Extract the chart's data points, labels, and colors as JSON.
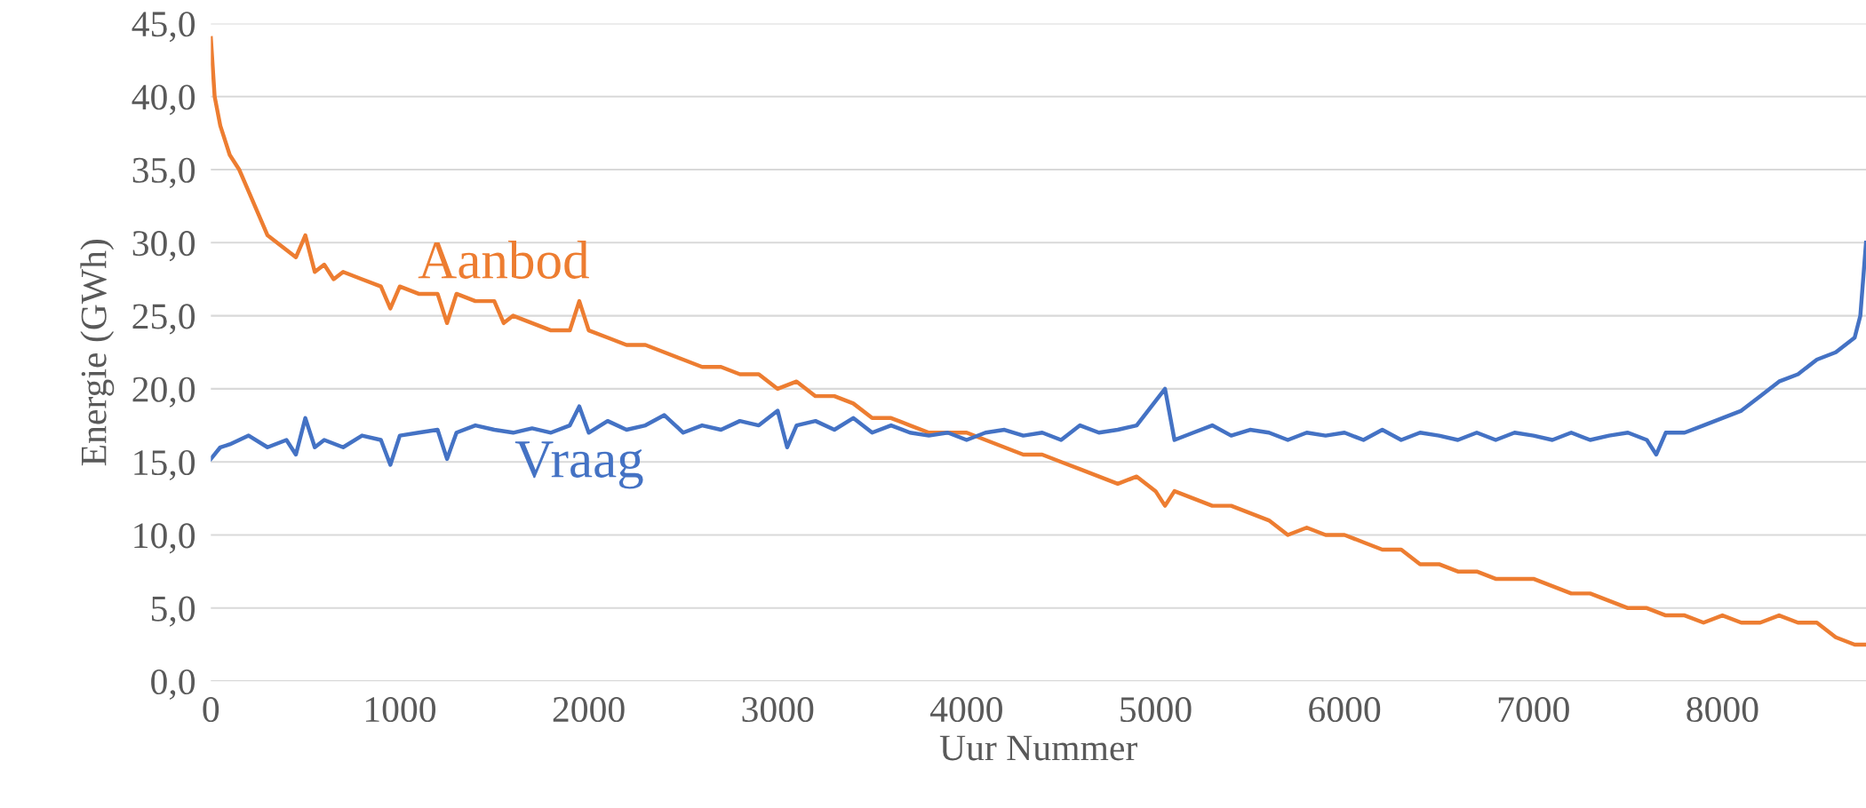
{
  "chart_data": {
    "type": "line",
    "xlabel": "Uur Nummer",
    "ylabel": "Energie (GWh)",
    "xlim": [
      0,
      8760
    ],
    "xticks": [
      0,
      1000,
      2000,
      3000,
      4000,
      5000,
      6000,
      7000,
      8000
    ],
    "ylim": [
      0,
      45
    ],
    "yticks": [
      {
        "value": 0,
        "label": "0,0"
      },
      {
        "value": 5,
        "label": "5,0"
      },
      {
        "value": 10,
        "label": "10,0"
      },
      {
        "value": 15,
        "label": "15,0"
      },
      {
        "value": 20,
        "label": "20,0"
      },
      {
        "value": 25,
        "label": "25,0"
      },
      {
        "value": 30,
        "label": "30,0"
      },
      {
        "value": 35,
        "label": "35,0"
      },
      {
        "value": 40,
        "label": "40,0"
      },
      {
        "value": 45,
        "label": "45,0"
      }
    ],
    "grid": "y",
    "legend": false,
    "series": [
      {
        "name": "Aanbod",
        "color": "#ed7d31",
        "x": [
          0,
          20,
          50,
          100,
          150,
          200,
          250,
          300,
          350,
          400,
          450,
          500,
          550,
          600,
          650,
          700,
          800,
          900,
          950,
          1000,
          1100,
          1200,
          1250,
          1300,
          1400,
          1500,
          1550,
          1600,
          1700,
          1800,
          1900,
          1950,
          2000,
          2100,
          2200,
          2300,
          2400,
          2500,
          2600,
          2700,
          2800,
          2900,
          3000,
          3100,
          3200,
          3300,
          3400,
          3500,
          3600,
          3700,
          3800,
          3900,
          4000,
          4100,
          4200,
          4300,
          4400,
          4500,
          4600,
          4700,
          4800,
          4900,
          5000,
          5050,
          5100,
          5200,
          5300,
          5400,
          5500,
          5600,
          5700,
          5800,
          5900,
          6000,
          6100,
          6200,
          6300,
          6400,
          6500,
          6600,
          6700,
          6800,
          6900,
          7000,
          7100,
          7200,
          7300,
          7400,
          7500,
          7600,
          7700,
          7800,
          7900,
          8000,
          8100,
          8200,
          8300,
          8400,
          8500,
          8600,
          8700,
          8760
        ],
        "values": [
          44,
          40,
          38,
          36,
          35,
          33.5,
          32,
          30.5,
          30,
          29.5,
          29,
          30.5,
          28,
          28.5,
          27.5,
          28,
          27.5,
          27,
          25.5,
          27,
          26.5,
          26.5,
          24.5,
          26.5,
          26,
          26,
          24.5,
          25,
          24.5,
          24,
          24,
          26,
          24,
          23.5,
          23,
          23,
          22.5,
          22,
          21.5,
          21.5,
          21,
          21,
          20,
          20.5,
          19.5,
          19.5,
          19,
          18,
          18,
          17.5,
          17,
          17,
          17,
          16.5,
          16,
          15.5,
          15.5,
          15,
          14.5,
          14,
          13.5,
          14,
          13,
          12,
          13,
          12.5,
          12,
          12,
          11.5,
          11,
          10,
          10.5,
          10,
          10,
          9.5,
          9,
          9,
          8,
          8,
          7.5,
          7.5,
          7,
          7,
          7,
          6.5,
          6,
          6,
          5.5,
          5,
          5,
          4.5,
          4.5,
          4,
          4.5,
          4,
          4,
          4.5,
          4,
          4,
          3,
          2.5,
          2.5
        ]
      },
      {
        "name": "Vraag",
        "color": "#4472c4",
        "x": [
          0,
          50,
          100,
          200,
          300,
          400,
          450,
          500,
          550,
          600,
          700,
          800,
          900,
          950,
          1000,
          1100,
          1200,
          1250,
          1300,
          1400,
          1500,
          1600,
          1700,
          1800,
          1900,
          1950,
          2000,
          2100,
          2200,
          2300,
          2400,
          2500,
          2600,
          2700,
          2800,
          2900,
          3000,
          3050,
          3100,
          3200,
          3300,
          3400,
          3500,
          3600,
          3700,
          3800,
          3900,
          4000,
          4100,
          4200,
          4300,
          4400,
          4500,
          4600,
          4700,
          4800,
          4900,
          5050,
          5100,
          5200,
          5300,
          5400,
          5500,
          5600,
          5700,
          5800,
          5900,
          6000,
          6100,
          6200,
          6300,
          6400,
          6500,
          6600,
          6700,
          6800,
          6900,
          7000,
          7100,
          7200,
          7300,
          7400,
          7500,
          7600,
          7650,
          7700,
          7800,
          7900,
          8000,
          8100,
          8200,
          8300,
          8400,
          8500,
          8600,
          8700,
          8730,
          8760
        ],
        "values": [
          15.2,
          16,
          16.2,
          16.8,
          16,
          16.5,
          15.5,
          18,
          16,
          16.5,
          16,
          16.8,
          16.5,
          14.8,
          16.8,
          17,
          17.2,
          15.2,
          17,
          17.5,
          17.2,
          17,
          17.3,
          17,
          17.5,
          18.8,
          17,
          17.8,
          17.2,
          17.5,
          18.2,
          17,
          17.5,
          17.2,
          17.8,
          17.5,
          18.5,
          16,
          17.5,
          17.8,
          17.2,
          18,
          17,
          17.5,
          17,
          16.8,
          17,
          16.5,
          17,
          17.2,
          16.8,
          17,
          16.5,
          17.5,
          17,
          17.2,
          17.5,
          20,
          16.5,
          17,
          17.5,
          16.8,
          17.2,
          17,
          16.5,
          17,
          16.8,
          17,
          16.5,
          17.2,
          16.5,
          17,
          16.8,
          16.5,
          17,
          16.5,
          17,
          16.8,
          16.5,
          17,
          16.5,
          16.8,
          17,
          16.5,
          15.5,
          17,
          17,
          17.5,
          18,
          18.5,
          19.5,
          20.5,
          21,
          22,
          22.5,
          23.5,
          25,
          30
        ]
      }
    ]
  }
}
